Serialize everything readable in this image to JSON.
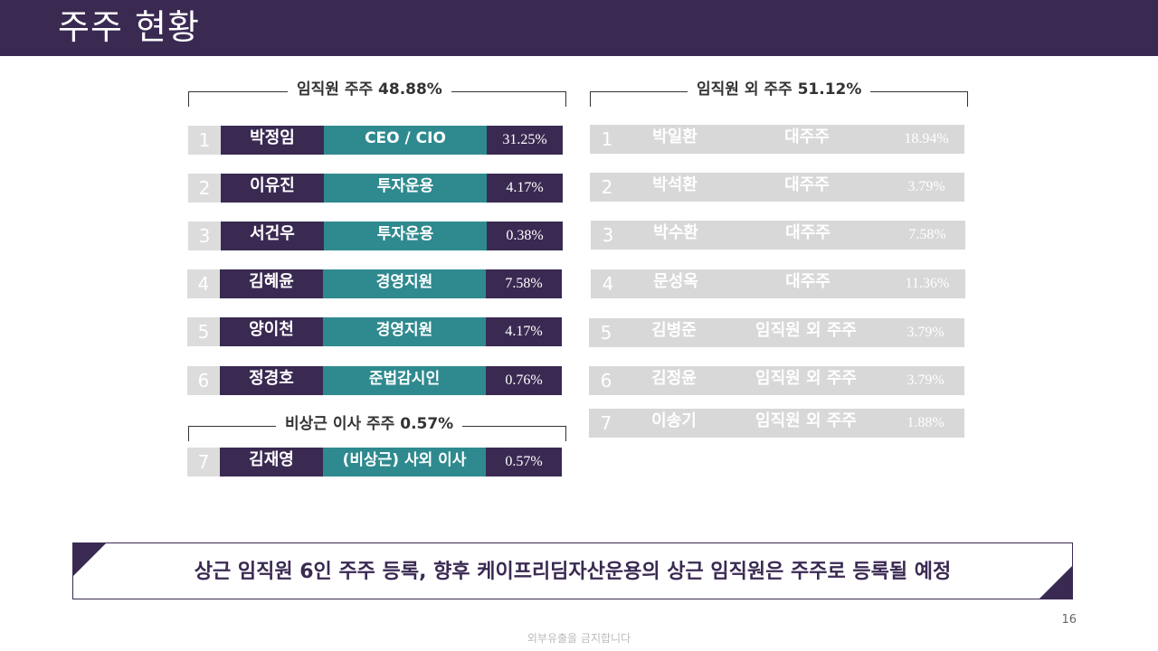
{
  "header": {
    "title": "주주 현황"
  },
  "sections": {
    "executives": {
      "label": "임직원  주주 48.88%"
    },
    "others": {
      "label": "임직원 외  주주 51.12%"
    },
    "nonstanding": {
      "label": "비상근 이사 주주 0.57%"
    }
  },
  "executives": [
    {
      "num": "1",
      "name": "박정임",
      "role": "CEO / CIO",
      "pct": "31.25%"
    },
    {
      "num": "2",
      "name": "이유진",
      "role": "투자운용",
      "pct": "4.17%"
    },
    {
      "num": "3",
      "name": "서건우",
      "role": "투자운용",
      "pct": "0.38%"
    },
    {
      "num": "4",
      "name": "김혜윤",
      "role": "경영지원",
      "pct": "7.58%"
    },
    {
      "num": "5",
      "name": "양이천",
      "role": "경영지원",
      "pct": "4.17%"
    },
    {
      "num": "6",
      "name": "정경호",
      "role": "준법감시인",
      "pct": "0.76%"
    }
  ],
  "nonstanding": [
    {
      "num": "7",
      "name": "김재영",
      "role": "(비상근) 사외 이사",
      "pct": "0.57%"
    }
  ],
  "others": [
    {
      "num": "1",
      "name": "박일환",
      "role": "대주주",
      "pct": "18.94%"
    },
    {
      "num": "2",
      "name": "박석환",
      "role": "대주주",
      "pct": "3.79%"
    },
    {
      "num": "3",
      "name": "박수환",
      "role": "대주주",
      "pct": "7.58%"
    },
    {
      "num": "4",
      "name": "문성옥",
      "role": "대주주",
      "pct": "11.36%"
    },
    {
      "num": "5",
      "name": "김병준",
      "role": "임직원 외 주주",
      "pct": "3.79%"
    },
    {
      "num": "6",
      "name": "김정윤",
      "role": "임직원 외 주주",
      "pct": "3.79%"
    },
    {
      "num": "7",
      "name": "이송기",
      "role": "임직원 외 주주",
      "pct": "1.88%"
    }
  ],
  "note": {
    "text": "상근 임직원 6인 주주 등록, 향후 케이프리딤자산운용의 상근 임직원은 주주로 등록될 예정"
  },
  "page_number": "16",
  "footer": {
    "text": "외부유출을 금지합니다"
  },
  "colors": {
    "purple": "#3a2a52",
    "teal": "#2f8a8f",
    "gray": "#d8d8d8"
  }
}
